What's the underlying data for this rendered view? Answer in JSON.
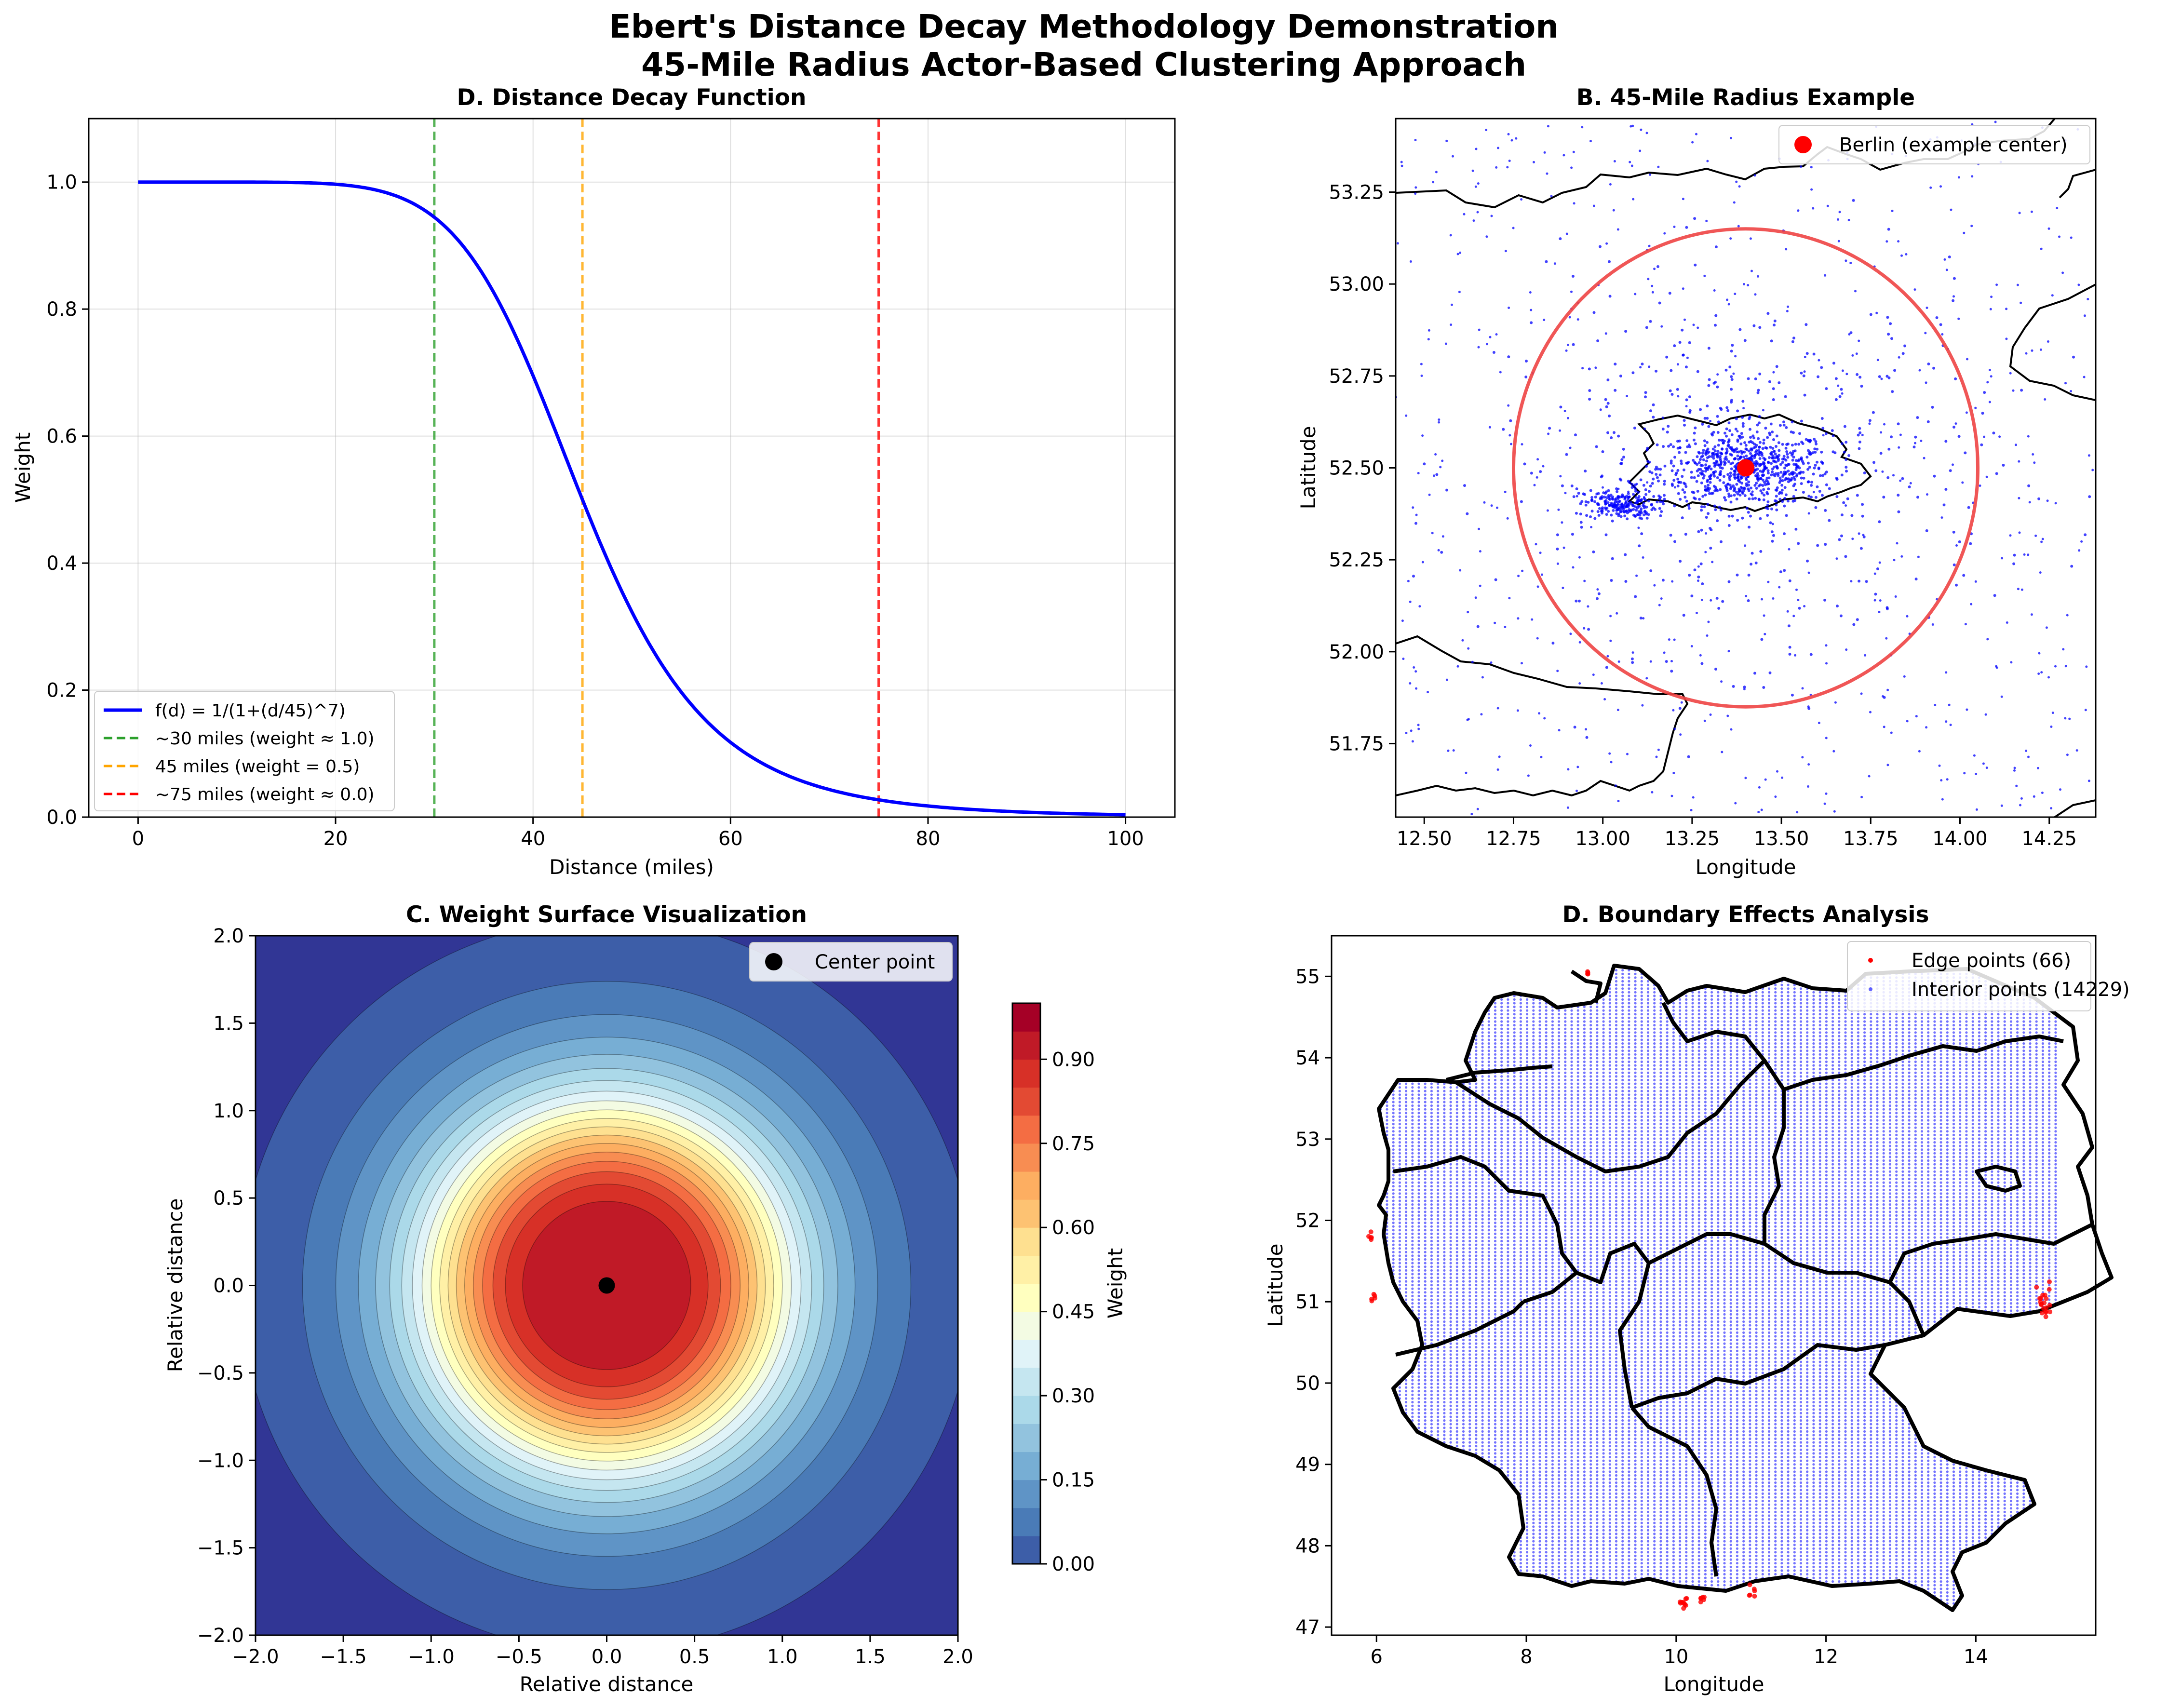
{
  "figure": {
    "suptitle_line1": "Ebert's Distance Decay Methodology Demonstration",
    "suptitle_line2": "45-Mile Radius Actor-Based Clustering Approach"
  },
  "chart_data": [
    {
      "id": "decay",
      "type": "line",
      "title": "D. Distance Decay Function",
      "xlabel": "Distance (miles)",
      "ylabel": "Weight",
      "xlim": [
        -5,
        105
      ],
      "ylim": [
        0,
        1.1
      ],
      "xticks": [
        0,
        20,
        40,
        60,
        80,
        100
      ],
      "yticks": [
        0,
        0.2,
        0.4,
        0.6,
        0.8,
        1.0
      ],
      "xtick_labels": [
        "0",
        "20",
        "40",
        "60",
        "80",
        "100"
      ],
      "ytick_labels": [
        "0.0",
        "0.2",
        "0.4",
        "0.6",
        "0.8",
        "1.0"
      ],
      "grid": true,
      "legend_position": "lower-left",
      "series": [
        {
          "name": "f(d) = 1/(1+(d/45)^7)",
          "color": "#0000ff",
          "x": [
            0,
            5,
            10,
            15,
            20,
            25,
            30,
            35,
            40,
            45,
            50,
            55,
            60,
            65,
            70,
            75,
            80,
            85,
            90,
            95,
            100
          ],
          "values": [
            1.0,
            1.0,
            1.0,
            0.9995,
            0.9966,
            0.9835,
            0.9432,
            0.8566,
            0.6989,
            0.5,
            0.3276,
            0.2056,
            0.1186,
            0.0736,
            0.0444,
            0.0276,
            0.0177,
            0.0117,
            0.0078,
            0.0054,
            0.0037
          ]
        }
      ],
      "vlines": [
        {
          "x": 30,
          "name": "~30 miles (weight ≈ 1.0)",
          "color": "#2ca02c"
        },
        {
          "x": 45,
          "name": "45 miles (weight = 0.5)",
          "color": "#ffa500"
        },
        {
          "x": 75,
          "name": "~75 miles (weight ≈ 0.0)",
          "color": "#ff0000"
        }
      ]
    },
    {
      "id": "radius",
      "type": "scatter",
      "title": "B. 45-Mile Radius Example",
      "xlabel": "Longitude",
      "ylabel": "Latitude",
      "xlim": [
        12.42,
        14.38
      ],
      "ylim": [
        51.55,
        53.45
      ],
      "xticks": [
        12.5,
        12.75,
        13.0,
        13.25,
        13.5,
        13.75,
        14.0,
        14.25
      ],
      "yticks": [
        51.75,
        52.0,
        52.25,
        52.5,
        52.75,
        53.0,
        53.25
      ],
      "xtick_labels": [
        "12.50",
        "12.75",
        "13.00",
        "13.25",
        "13.50",
        "13.75",
        "14.00",
        "14.25"
      ],
      "ytick_labels": [
        "51.75",
        "52.00",
        "52.25",
        "52.50",
        "52.75",
        "53.00",
        "53.25"
      ],
      "legend_position": "top-right",
      "center": {
        "name": "Berlin (example center)",
        "lon": 13.4,
        "lat": 52.5,
        "color": "#ff0000"
      },
      "circle": {
        "lon_radius": 0.65,
        "lat_radius": 0.65,
        "color": "#ee4444"
      },
      "point_color": "#0000ff"
    },
    {
      "id": "surface",
      "type": "heatmap",
      "title": "C. Weight Surface Visualization",
      "xlabel": "Relative distance",
      "ylabel": "Relative distance",
      "xlim": [
        -2,
        2
      ],
      "ylim": [
        -2,
        2
      ],
      "xticks": [
        -2,
        -1.5,
        -1,
        -0.5,
        0,
        0.5,
        1,
        1.5,
        2
      ],
      "yticks": [
        -2,
        -1.5,
        -1,
        -0.5,
        0,
        0.5,
        1,
        1.5,
        2
      ],
      "xtick_labels": [
        "−2.0",
        "−1.5",
        "−1.0",
        "−0.5",
        "0.0",
        "0.5",
        "1.0",
        "1.5",
        "2.0"
      ],
      "ytick_labels": [
        "−2.0",
        "−1.5",
        "−1.0",
        "−0.5",
        "0.0",
        "0.5",
        "1.0",
        "1.5",
        "2.0"
      ],
      "colorbar_label": "Weight",
      "colorbar_ticks": [
        0.0,
        0.15,
        0.3,
        0.45,
        0.6,
        0.75,
        0.9
      ],
      "colorbar_tick_labels": [
        "0.00",
        "0.15",
        "0.30",
        "0.45",
        "0.60",
        "0.75",
        "0.90"
      ],
      "levels": [
        0,
        0.05,
        0.1,
        0.15,
        0.2,
        0.25,
        0.3,
        0.35,
        0.4,
        0.45,
        0.5,
        0.55,
        0.6,
        0.65,
        0.7,
        0.75,
        0.8,
        0.85,
        0.9,
        0.95,
        1.0
      ],
      "colors": [
        "#313695",
        "#3d5ea8",
        "#4a7bb7",
        "#5f94c6",
        "#77aed4",
        "#92c3de",
        "#abd9e9",
        "#c5e6f0",
        "#e0f3f8",
        "#f3fbe3",
        "#ffffbf",
        "#fff0a6",
        "#fee090",
        "#fdc272",
        "#fdae61",
        "#f88d52",
        "#f46d43",
        "#e34a33",
        "#d73027",
        "#c01a27",
        "#a50026"
      ],
      "legend_position": "top-right",
      "center": {
        "name": "Center point",
        "x": 0,
        "y": 0
      }
    },
    {
      "id": "boundary",
      "type": "scatter",
      "title": "D. Boundary Effects Analysis",
      "xlabel": "Longitude",
      "ylabel": "Latitude",
      "xlim": [
        5.4,
        15.6
      ],
      "ylim": [
        46.9,
        55.5
      ],
      "xticks": [
        6,
        8,
        10,
        12,
        14
      ],
      "yticks": [
        47,
        48,
        49,
        50,
        51,
        52,
        53,
        54,
        55
      ],
      "xtick_labels": [
        "6",
        "8",
        "10",
        "12",
        "14"
      ],
      "ytick_labels": [
        "47",
        "48",
        "49",
        "50",
        "51",
        "52",
        "53",
        "54",
        "55"
      ],
      "legend_position": "top-right",
      "series": [
        {
          "name": "Edge points (66)",
          "color": "#ff0000",
          "count": 66
        },
        {
          "name": "Interior points (14229)",
          "color": "#0000ff",
          "count": 14229
        }
      ]
    }
  ]
}
